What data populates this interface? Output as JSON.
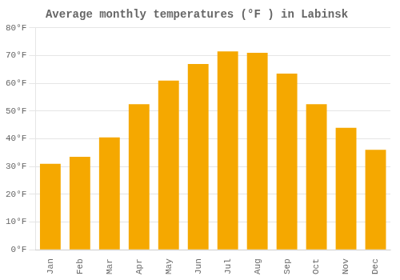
{
  "chart_data": {
    "type": "bar",
    "title": "Average monthly temperatures (°F ) in Labinsk",
    "categories": [
      "Jan",
      "Feb",
      "Mar",
      "Apr",
      "May",
      "Jun",
      "Jul",
      "Aug",
      "Sep",
      "Oct",
      "Nov",
      "Dec"
    ],
    "values": [
      31,
      33.5,
      40.5,
      52.5,
      61,
      67,
      71.5,
      71,
      63.5,
      52.5,
      44,
      36
    ],
    "color": "#F5A800",
    "ylim": [
      0,
      80
    ],
    "yticks": [
      {
        "value": 0,
        "label": "0°F"
      },
      {
        "value": 10,
        "label": "10°F"
      },
      {
        "value": 20,
        "label": "20°F"
      },
      {
        "value": 30,
        "label": "30°F"
      },
      {
        "value": 40,
        "label": "40°F"
      },
      {
        "value": 50,
        "label": "50°F"
      },
      {
        "value": 60,
        "label": "60°F"
      },
      {
        "value": 70,
        "label": "70°F"
      },
      {
        "value": 80,
        "label": "80°F"
      }
    ],
    "grid": true
  }
}
